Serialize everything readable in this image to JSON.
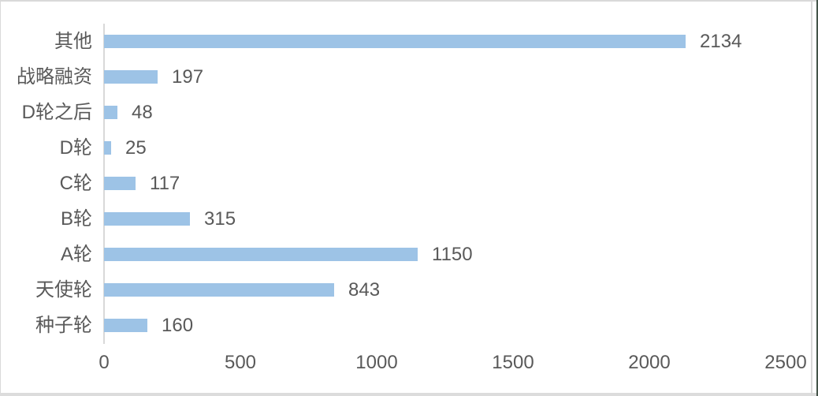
{
  "chart_data": {
    "type": "bar",
    "orientation": "horizontal",
    "title": "",
    "xlabel": "",
    "ylabel": "",
    "categories": [
      "其他",
      "战略融资",
      "D轮之后",
      "D轮",
      "C轮",
      "B轮",
      "A轮",
      "天使轮",
      "种子轮"
    ],
    "values": [
      2134,
      197,
      48,
      25,
      117,
      315,
      1150,
      843,
      160
    ],
    "data_labels": [
      "2134",
      "197",
      "48",
      "25",
      "117",
      "315",
      "1150",
      "843",
      "160"
    ],
    "xlim": [
      0,
      2500
    ],
    "x_ticks": [
      "0",
      "500",
      "1000",
      "1500",
      "2000",
      "2500"
    ],
    "x_tick_values": [
      0,
      500,
      1000,
      1500,
      2000,
      2500
    ],
    "grid": false,
    "legend": false,
    "colors": {
      "bar": "#9DC3E6",
      "axis_line": "#D9D9D9",
      "text": "#595959",
      "border_gray": "#D9D9D9",
      "border_bottom": "#DCDCDC",
      "edge_dark": "#445449",
      "background": "#FFFFFF"
    }
  }
}
